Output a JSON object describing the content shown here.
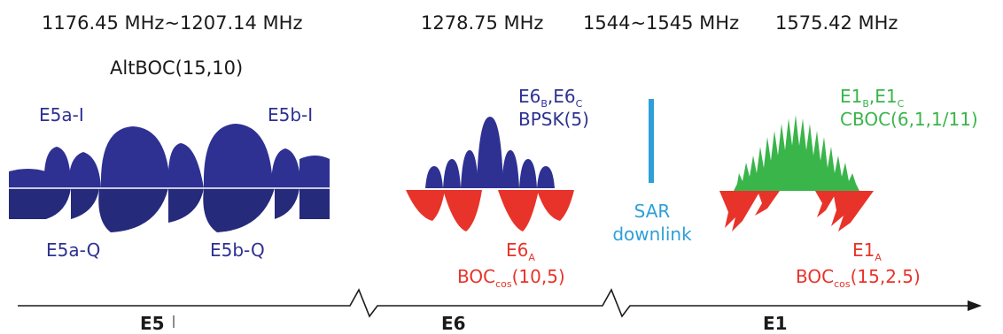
{
  "frequencies": {
    "e5": "1176.45 MHz~1207.14 MHz",
    "e6": "1278.75 MHz",
    "sar": "1544~1545 MHz",
    "e1": "1575.42 MHz"
  },
  "e5": {
    "modulation": "AltBOC(15,10)",
    "e5a_i": "E5a-I",
    "e5b_i": "E5b-I",
    "e5a_q": "E5a-Q",
    "e5b_q": "E5b-Q"
  },
  "e6": {
    "bc_pre": "E6",
    "bc_sub1": "B",
    "bc_mid": ",E6",
    "bc_sub2": "C",
    "bc_mod": "BPSK(5)",
    "a_pre": "E6",
    "a_sub": "A",
    "a_mod_pre": "BOC",
    "a_mod_sub": "cos",
    "a_mod_post": "(10,5)"
  },
  "sar": {
    "line1": "SAR",
    "line2": "downlink"
  },
  "e1": {
    "bc_pre": "E1",
    "bc_sub1": "B",
    "bc_mid": ",E1",
    "bc_sub2": "C",
    "bc_mod": "CBOC(6,1,1/11)",
    "a_pre": "E1",
    "a_sub": "A",
    "a_mod_pre": "BOC",
    "a_mod_sub": "cos",
    "a_mod_post": "(15,2.5)"
  },
  "axis": {
    "e5": "E5",
    "e6": "E6",
    "e1": "E1"
  },
  "colors": {
    "navy": "#2e3192",
    "navy_dark": "#262a7a",
    "red": "#e8332a",
    "green": "#39b54a",
    "cyan": "#2e9fd9"
  }
}
